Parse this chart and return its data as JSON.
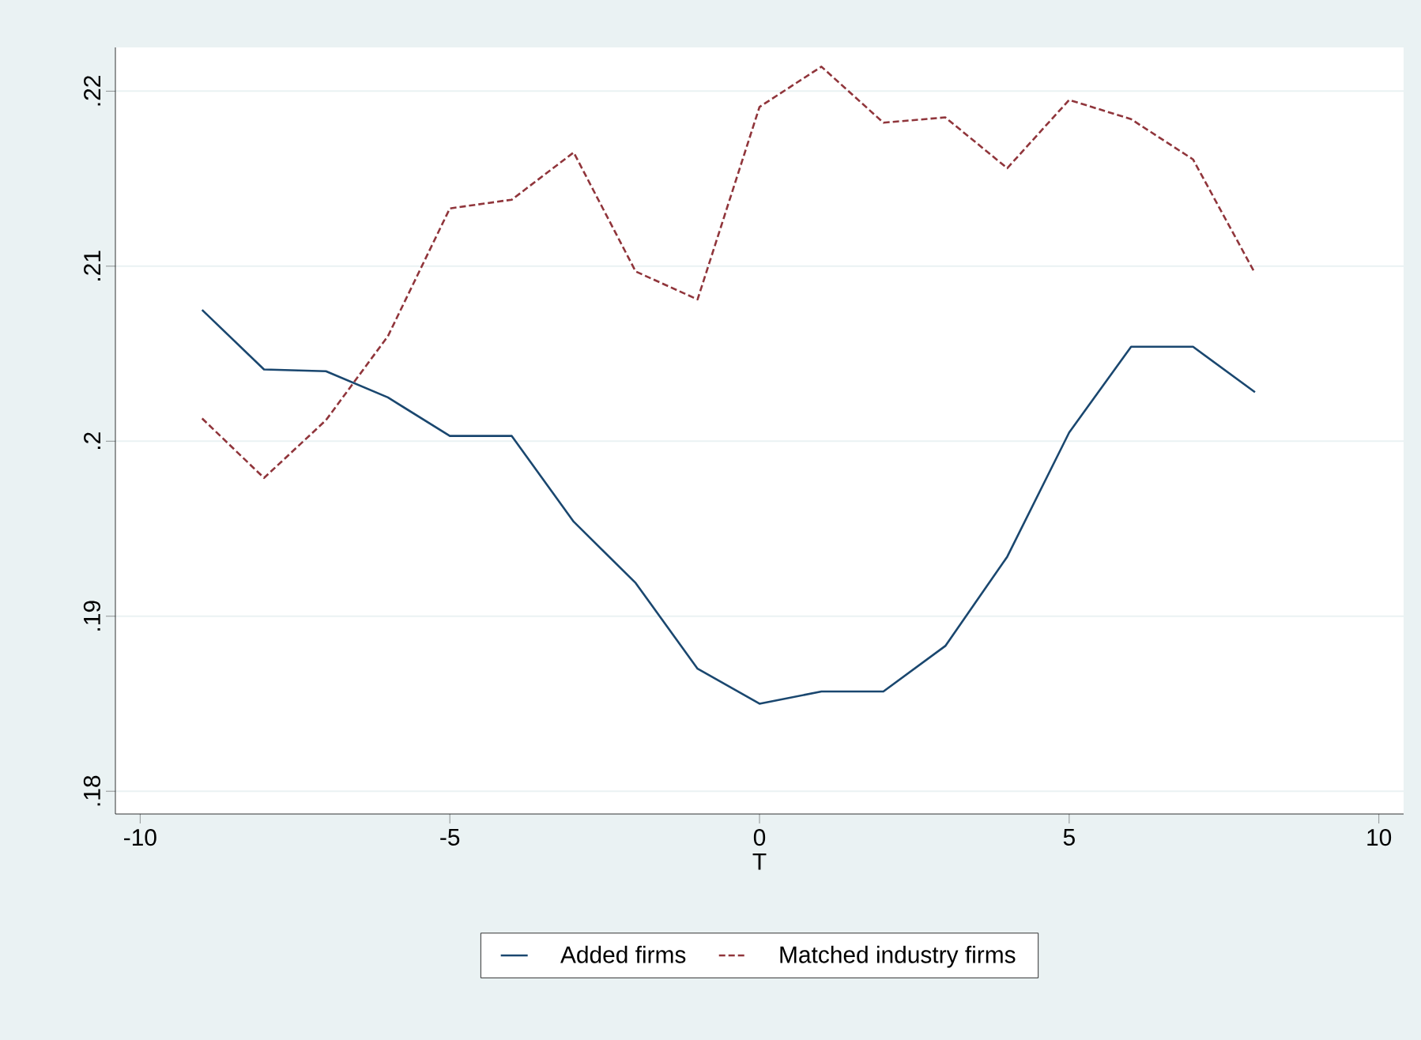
{
  "chart_data": {
    "type": "line",
    "xlabel": "T",
    "x": [
      -9,
      -8,
      -7,
      -6,
      -5,
      -4,
      -3,
      -2,
      -1,
      0,
      1,
      2,
      3,
      4,
      5,
      6,
      7,
      8
    ],
    "series": [
      {
        "name": "Added firms",
        "color": "#1a476f",
        "line_style": "solid",
        "values": [
          0.2075,
          0.2041,
          0.204,
          0.2025,
          0.2003,
          0.2003,
          0.1954,
          0.1919,
          0.187,
          0.185,
          0.1857,
          0.1857,
          0.1883,
          0.1934,
          0.2005,
          0.2054,
          0.2054,
          0.2028
        ]
      },
      {
        "name": "Matched industry firms",
        "color": "#90353b",
        "line_style": "dashed",
        "values": [
          0.2013,
          0.1979,
          0.2012,
          0.206,
          0.2133,
          0.2138,
          0.2165,
          0.2097,
          0.2081,
          0.2191,
          0.2214,
          0.2182,
          0.2185,
          0.2156,
          0.2195,
          0.2184,
          0.2161,
          0.2096
        ]
      }
    ],
    "xlim": [
      -10.4,
      10.4
    ],
    "ylim": [
      0.1787,
      0.2225
    ],
    "xticks": [
      -10,
      -5,
      0,
      5,
      10
    ],
    "yticks": [
      {
        "value": 0.18,
        "label": ".18"
      },
      {
        "value": 0.19,
        "label": ".19"
      },
      {
        "value": 0.2,
        "label": ".2"
      },
      {
        "value": 0.21,
        "label": ".21"
      },
      {
        "value": 0.22,
        "label": ".22"
      }
    ],
    "grid": "y",
    "legend": "bottom",
    "marker": "none"
  }
}
